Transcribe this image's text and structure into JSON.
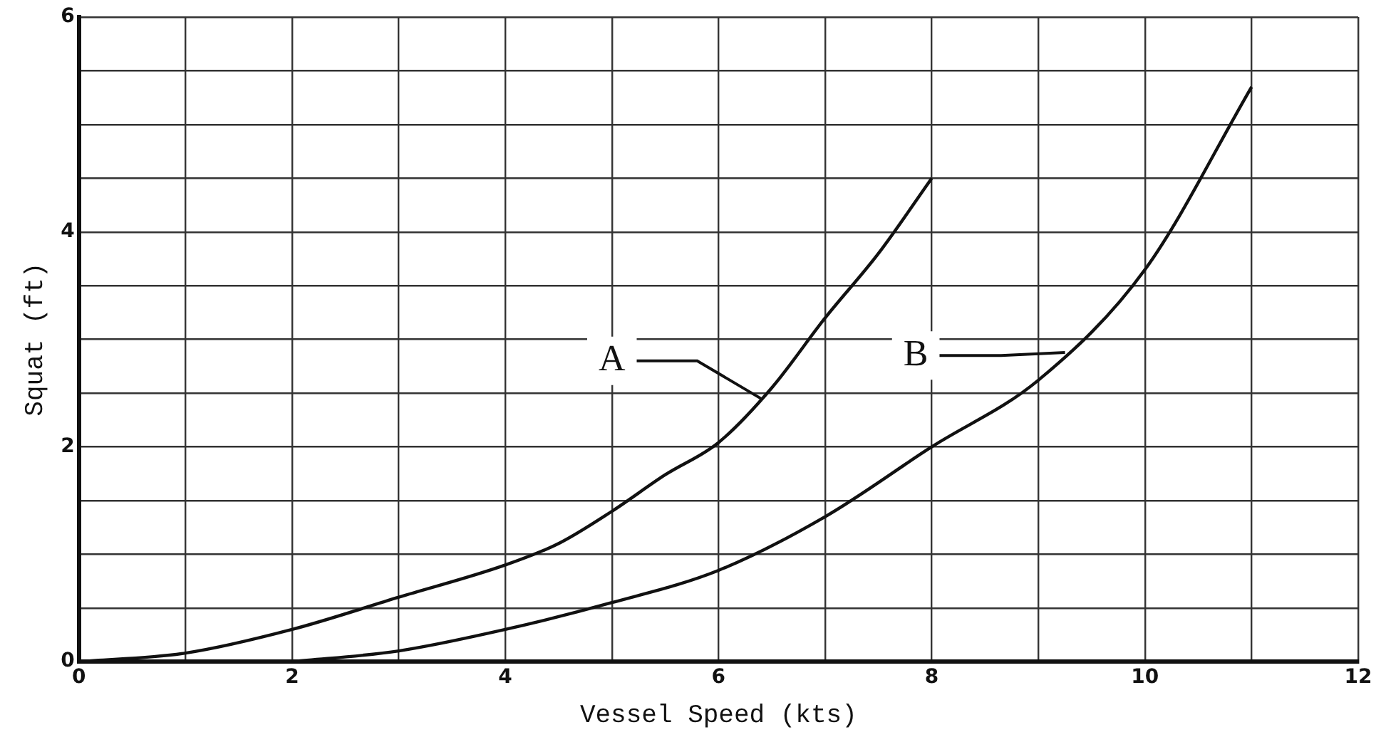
{
  "chart_data": {
    "type": "line",
    "xlabel": "Vessel Speed (kts)",
    "ylabel": "Squat (ft)",
    "xlim": [
      0,
      12
    ],
    "ylim": [
      0,
      6
    ],
    "xticks": [
      0,
      {
        "value": 1,
        "label": null
      },
      2,
      {
        "value": 3,
        "label": null
      },
      4,
      {
        "value": 5,
        "label": null
      },
      6,
      {
        "value": 7,
        "label": null
      },
      8,
      {
        "value": 9,
        "label": null
      },
      10,
      {
        "value": 11,
        "label": null
      },
      12
    ],
    "yticks": [
      0,
      {
        "value": 0.5,
        "label": null
      },
      {
        "value": 1,
        "label": null
      },
      {
        "value": 1.5,
        "label": null
      },
      2,
      {
        "value": 2.5,
        "label": null
      },
      {
        "value": 3,
        "label": null
      },
      {
        "value": 3.5,
        "label": null
      },
      4,
      {
        "value": 4.5,
        "label": null
      },
      {
        "value": 5,
        "label": null
      },
      {
        "value": 5.5,
        "label": null
      },
      6
    ],
    "grid": true,
    "legend": false,
    "marker": "none",
    "line_style": "solid",
    "series": [
      {
        "color": "#111111",
        "x": [
          0,
          1,
          2,
          3,
          4,
          4.5,
          5,
          5.5,
          6,
          6.5,
          7,
          7.5,
          8
        ],
        "values": [
          0,
          0.08,
          0.3,
          0.6,
          0.9,
          1.1,
          1.4,
          1.74,
          2.04,
          2.55,
          3.2,
          3.8,
          4.5
        ]
      },
      {
        "color": "#111111",
        "x": [
          2,
          3,
          4,
          5,
          6,
          7,
          8,
          9,
          10,
          11
        ],
        "values": [
          0,
          0.1,
          0.3,
          0.55,
          0.85,
          1.35,
          2.0,
          2.62,
          3.65,
          5.35
        ]
      }
    ],
    "annotations": [
      {
        "text": "A",
        "x": 5,
        "y": 2.8
      },
      {
        "text": "B",
        "x": 7.85,
        "y": 2.85
      }
    ]
  }
}
